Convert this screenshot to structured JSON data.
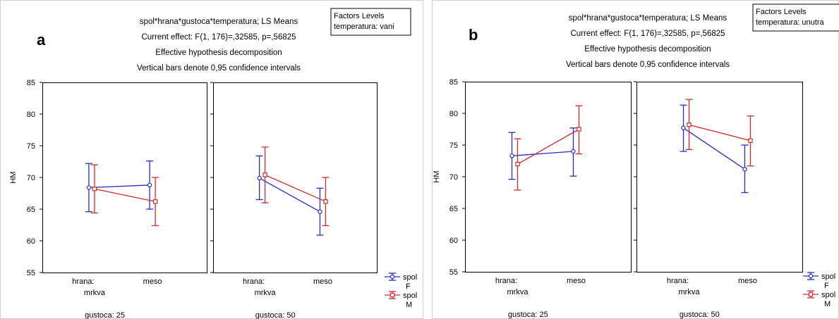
{
  "chart_data": [
    {
      "type": "line",
      "figure_label": "a",
      "title_lines": [
        "spol*hrana*gustoca*temperatura; LS Means",
        "Current effect: F(1, 176)=,32585, p=,56825",
        "Effective hypothesis decomposition",
        "Vertical bars denote 0,95 confidence intervals"
      ],
      "factor_box": {
        "title": "Factors Levels",
        "value": "temperatura: vani"
      },
      "ylabel": "HM",
      "ylim": [
        55,
        85
      ],
      "yticks": [
        55,
        60,
        65,
        70,
        75,
        80,
        85
      ],
      "categories": [
        "hrana:\nmrkva",
        "meso"
      ],
      "legend": {
        "title": "spol",
        "entries": [
          "F",
          "M"
        ]
      },
      "colors": {
        "F": "#2a2acc",
        "M": "#d42a2a"
      },
      "panels": [
        {
          "label": "gustoca: 25",
          "series": [
            {
              "name": "F",
              "values": [
                68.4,
                68.8
              ],
              "ci_low": [
                64.6,
                65.0
              ],
              "ci_high": [
                72.2,
                72.6
              ]
            },
            {
              "name": "M",
              "values": [
                68.2,
                66.2
              ],
              "ci_low": [
                64.4,
                62.4
              ],
              "ci_high": [
                72.0,
                70.0
              ]
            }
          ]
        },
        {
          "label": "gustoca: 50",
          "series": [
            {
              "name": "F",
              "values": [
                69.9,
                64.6
              ],
              "ci_low": [
                66.5,
                60.9
              ],
              "ci_high": [
                73.4,
                68.3
              ]
            },
            {
              "name": "M",
              "values": [
                70.4,
                66.2
              ],
              "ci_low": [
                66.0,
                62.4
              ],
              "ci_high": [
                74.8,
                70.0
              ]
            }
          ]
        }
      ]
    },
    {
      "type": "line",
      "figure_label": "b",
      "title_lines": [
        "spol*hrana*gustoca*temperatura; LS Means",
        "Current effect: F(1, 176)=,32585, p=,56825",
        "Effective hypothesis decomposition",
        "Vertical bars denote 0,95 confidence intervals"
      ],
      "factor_box": {
        "title": "Factors Levels",
        "value": "temperatura: unutra"
      },
      "ylabel": "HM",
      "ylim": [
        55,
        85
      ],
      "yticks": [
        55,
        60,
        65,
        70,
        75,
        80,
        85
      ],
      "categories": [
        "hrana:\nmrkva",
        "meso"
      ],
      "legend": {
        "title": "spol",
        "entries": [
          "F",
          "M"
        ]
      },
      "colors": {
        "F": "#2a2acc",
        "M": "#d42a2a"
      },
      "panels": [
        {
          "label": "gustoca: 25",
          "series": [
            {
              "name": "F",
              "values": [
                73.3,
                74.0
              ],
              "ci_low": [
                69.6,
                70.1
              ],
              "ci_high": [
                77.0,
                77.7
              ]
            },
            {
              "name": "M",
              "values": [
                72.0,
                77.5
              ],
              "ci_low": [
                67.9,
                73.6
              ],
              "ci_high": [
                76.0,
                81.2
              ]
            }
          ]
        },
        {
          "label": "gustoca: 50",
          "series": [
            {
              "name": "F",
              "values": [
                77.7,
                71.2
              ],
              "ci_low": [
                74.0,
                67.5
              ],
              "ci_high": [
                81.3,
                75.0
              ]
            },
            {
              "name": "M",
              "values": [
                78.2,
                75.7
              ],
              "ci_low": [
                74.3,
                71.7
              ],
              "ci_high": [
                82.2,
                79.6
              ]
            }
          ]
        }
      ]
    }
  ]
}
